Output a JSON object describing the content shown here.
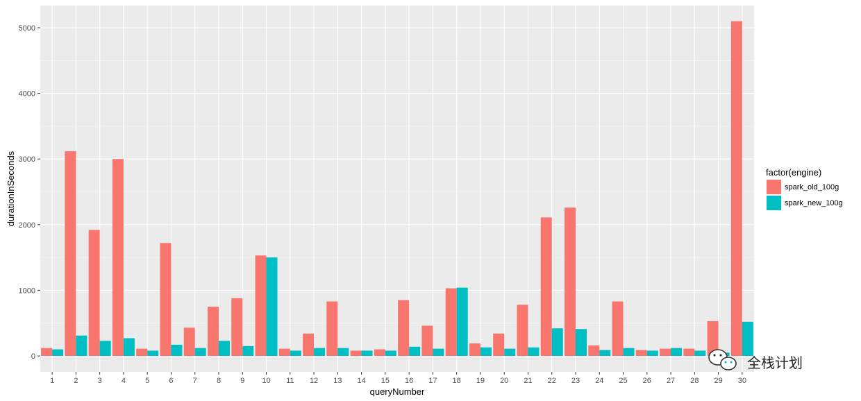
{
  "chart_data": {
    "type": "bar",
    "xlabel": "queryNumber",
    "ylabel": "durationInSeconds",
    "ylim": [
      0,
      5200
    ],
    "yticks": [
      0,
      1000,
      2000,
      3000,
      4000,
      5000
    ],
    "grid": true,
    "legend_placement": "right",
    "legend_title": "factor(engine)",
    "categories": [
      "1",
      "2",
      "3",
      "4",
      "5",
      "6",
      "7",
      "8",
      "9",
      "10",
      "11",
      "12",
      "13",
      "14",
      "15",
      "16",
      "17",
      "18",
      "19",
      "20",
      "21",
      "22",
      "23",
      "24",
      "25",
      "26",
      "27",
      "28",
      "29",
      "30"
    ],
    "series": [
      {
        "name": "spark_old_100g",
        "color": "#F8766D",
        "values": [
          120,
          3120,
          1920,
          3000,
          110,
          1720,
          430,
          750,
          880,
          1530,
          110,
          340,
          830,
          80,
          100,
          850,
          460,
          1030,
          190,
          340,
          780,
          2110,
          2260,
          160,
          830,
          90,
          110,
          110,
          530,
          5100
        ]
      },
      {
        "name": "spark_new_100g",
        "color": "#00BFC4",
        "values": [
          100,
          310,
          230,
          270,
          80,
          170,
          120,
          230,
          150,
          1500,
          80,
          120,
          120,
          80,
          80,
          140,
          110,
          1040,
          130,
          110,
          130,
          420,
          410,
          90,
          120,
          80,
          120,
          80,
          50,
          520
        ]
      }
    ]
  },
  "watermark": {
    "text": "全栈计划",
    "icon": "wechat-icon"
  }
}
